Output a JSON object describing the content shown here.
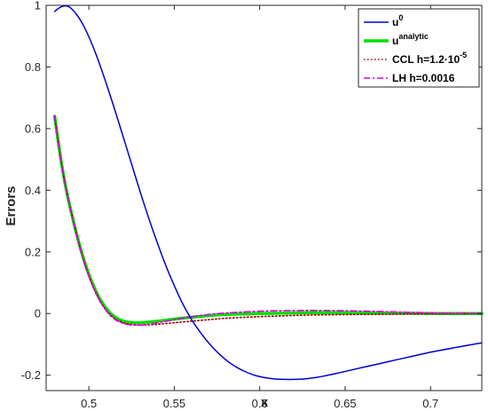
{
  "chart_data": {
    "type": "line",
    "title": "",
    "xlabel": "x",
    "ylabel": "Errors",
    "xlim": [
      0.475,
      0.73
    ],
    "ylim": [
      -0.25,
      1.0
    ],
    "xticks": [
      0.5,
      0.55,
      0.6,
      0.65,
      0.7
    ],
    "xtick_labels": [
      "0.5",
      "0.55",
      "0.6",
      "0.65",
      "0.7"
    ],
    "yticks": [
      -0.2,
      0,
      0.2,
      0.4,
      0.6,
      0.8,
      1
    ],
    "ytick_labels": [
      "-0.2",
      "0",
      "0.2",
      "0.4",
      "0.6",
      "0.8",
      "1"
    ],
    "grid": false,
    "legend_position": "top-right",
    "series": [
      {
        "name": "u^0",
        "legend_base": "u",
        "legend_sup": "0",
        "color": "#0000cc",
        "style": "solid",
        "x": [
          0.48,
          0.483,
          0.487,
          0.49,
          0.495,
          0.5,
          0.505,
          0.51,
          0.515,
          0.52,
          0.525,
          0.53,
          0.535,
          0.54,
          0.545,
          0.55,
          0.555,
          0.56,
          0.565,
          0.57,
          0.575,
          0.58,
          0.585,
          0.59,
          0.595,
          0.6,
          0.605,
          0.61,
          0.615,
          0.62,
          0.625,
          0.63,
          0.635,
          0.64,
          0.65,
          0.66,
          0.67,
          0.68,
          0.69,
          0.7,
          0.71,
          0.72,
          0.73
        ],
        "y": [
          0.98,
          0.995,
          1.0,
          0.99,
          0.955,
          0.9,
          0.83,
          0.75,
          0.665,
          0.575,
          0.485,
          0.395,
          0.31,
          0.23,
          0.155,
          0.09,
          0.03,
          -0.02,
          -0.06,
          -0.095,
          -0.125,
          -0.15,
          -0.17,
          -0.185,
          -0.197,
          -0.205,
          -0.21,
          -0.213,
          -0.214,
          -0.214,
          -0.213,
          -0.21,
          -0.206,
          -0.2,
          -0.188,
          -0.175,
          -0.163,
          -0.15,
          -0.138,
          -0.125,
          -0.115,
          -0.105,
          -0.095
        ]
      },
      {
        "name": "u^analytic",
        "legend_base": "u",
        "legend_sup": "analytic",
        "color": "#00dd00",
        "style": "solid-thick",
        "x": [
          0.48,
          0.483,
          0.486,
          0.49,
          0.495,
          0.5,
          0.505,
          0.51,
          0.515,
          0.52,
          0.525,
          0.53,
          0.535,
          0.54,
          0.55,
          0.56,
          0.57,
          0.58,
          0.6,
          0.62,
          0.64,
          0.66,
          0.68,
          0.7,
          0.73
        ],
        "y": [
          0.64,
          0.52,
          0.42,
          0.32,
          0.21,
          0.125,
          0.06,
          0.015,
          -0.012,
          -0.025,
          -0.03,
          -0.03,
          -0.028,
          -0.025,
          -0.018,
          -0.012,
          -0.007,
          -0.003,
          0.0,
          0.002,
          0.003,
          0.002,
          0.001,
          0.0,
          0.0
        ]
      },
      {
        "name": "CCL h=1.2·10^-5",
        "legend_base": "CCL h=1.2·10",
        "legend_sup": "-5",
        "color": "#990000",
        "style": "dotted",
        "x": [
          0.48,
          0.483,
          0.486,
          0.49,
          0.495,
          0.5,
          0.505,
          0.51,
          0.515,
          0.52,
          0.525,
          0.53,
          0.535,
          0.54,
          0.55,
          0.56,
          0.57,
          0.58,
          0.6,
          0.62,
          0.64,
          0.66,
          0.68,
          0.7,
          0.73
        ],
        "y": [
          0.64,
          0.52,
          0.42,
          0.32,
          0.21,
          0.12,
          0.055,
          0.01,
          -0.017,
          -0.03,
          -0.036,
          -0.038,
          -0.037,
          -0.035,
          -0.03,
          -0.025,
          -0.02,
          -0.015,
          -0.01,
          -0.006,
          -0.004,
          -0.003,
          -0.002,
          -0.001,
          0.0
        ]
      },
      {
        "name": "LH h=0.0016",
        "legend_base": "LH h=0.0016",
        "legend_sup": "",
        "color": "#dd00dd",
        "style": "dashdot",
        "x": [
          0.48,
          0.483,
          0.486,
          0.49,
          0.495,
          0.5,
          0.505,
          0.51,
          0.515,
          0.52,
          0.525,
          0.53,
          0.535,
          0.54,
          0.55,
          0.56,
          0.57,
          0.58,
          0.6,
          0.62,
          0.64,
          0.66,
          0.68,
          0.7,
          0.73
        ],
        "y": [
          0.64,
          0.52,
          0.42,
          0.32,
          0.205,
          0.118,
          0.052,
          0.008,
          -0.02,
          -0.033,
          -0.038,
          -0.038,
          -0.035,
          -0.03,
          -0.02,
          -0.01,
          -0.003,
          0.002,
          0.008,
          0.01,
          0.01,
          0.008,
          0.005,
          0.002,
          0.0
        ]
      }
    ]
  }
}
